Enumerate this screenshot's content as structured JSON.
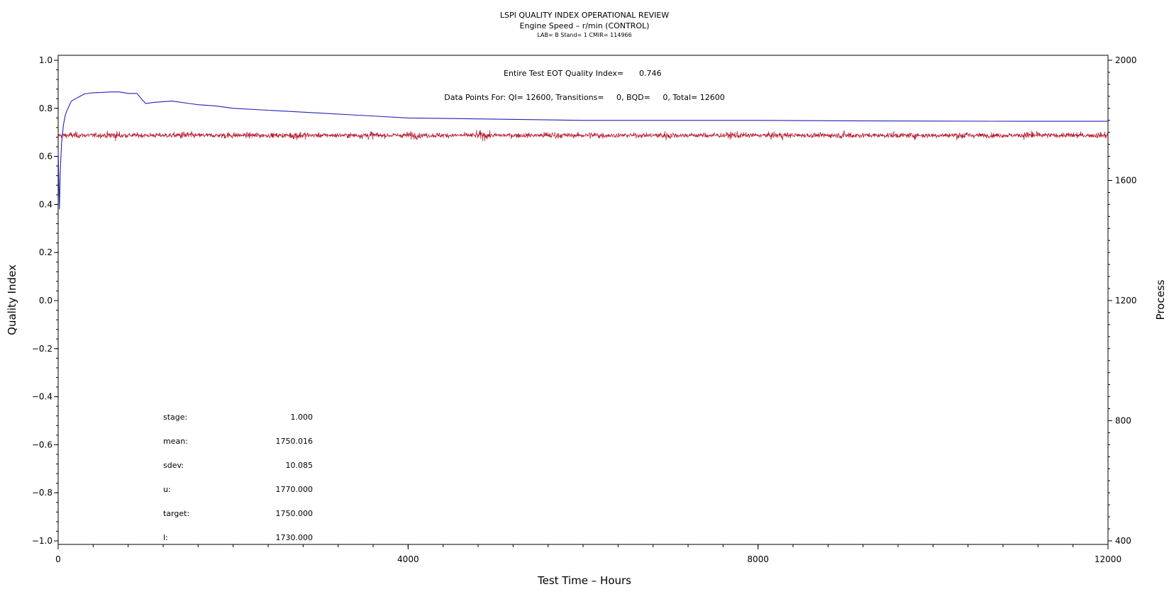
{
  "header": {
    "title": "LSPI QUALITY INDEX OPERATIONAL REVIEW",
    "subtitle": "Engine Speed – r/min (CONTROL)",
    "info": "LAB= B Stand= 1 CMIR= 114966"
  },
  "annotations": {
    "eot_label": "Entire Test EOT Quality Index=",
    "eot_value": "0.746",
    "points": "Data Points For: QI= 12600, Transitions=     0, BQD=     0, Total= 12600"
  },
  "stats": [
    {
      "label": "stage:",
      "value": "1.000"
    },
    {
      "label": "mean:",
      "value": "1750.016"
    },
    {
      "label": "sdev:",
      "value": "10.085"
    },
    {
      "label": "u:",
      "value": "1770.000"
    },
    {
      "label": "target:",
      "value": "1750.000"
    },
    {
      "label": "l:",
      "value": "1730.000"
    }
  ],
  "colors": {
    "quality_index": "#2323b4",
    "process": "#b4162a",
    "axis": "#000000"
  },
  "chart_data": {
    "type": "line",
    "xlabel": "Test Time – Hours",
    "ylabel": "Quality Index",
    "y2label": "Process",
    "xlim": [
      0,
      12000
    ],
    "ylim": [
      -1.0,
      1.0
    ],
    "y2lim": [
      400,
      2000
    ],
    "x_ticks": [
      "0",
      "4000",
      "8000",
      "12000"
    ],
    "y_ticks": [
      "1.0",
      "0.8",
      "0.6",
      "0.4",
      "0.2",
      "0.0",
      "−0.2",
      "−0.4",
      "−0.6",
      "−0.8",
      "−1.0"
    ],
    "y2_ticks": [
      "2000",
      "1600",
      "1200",
      "800",
      "400"
    ],
    "series": [
      {
        "id": "quality_index",
        "axis": "left",
        "x": [
          0,
          15,
          25,
          40,
          60,
          80,
          100,
          150,
          200,
          250,
          300,
          400,
          500,
          600,
          700,
          800,
          900,
          950,
          1000,
          1100,
          1300,
          1500,
          1600,
          1800,
          2000,
          2500,
          3000,
          3500,
          4000,
          5000,
          6000,
          7000,
          8000,
          9000,
          10000,
          11000,
          12000
        ],
        "y": [
          0.62,
          0.38,
          0.55,
          0.66,
          0.73,
          0.77,
          0.79,
          0.83,
          0.84,
          0.85,
          0.86,
          0.865,
          0.866,
          0.868,
          0.868,
          0.862,
          0.862,
          0.84,
          0.82,
          0.825,
          0.83,
          0.82,
          0.815,
          0.81,
          0.8,
          0.79,
          0.78,
          0.77,
          0.76,
          0.755,
          0.75,
          0.75,
          0.75,
          0.748,
          0.747,
          0.746,
          0.746
        ]
      },
      {
        "id": "process",
        "axis": "right",
        "mean": 1750.016,
        "sdev": 10.085,
        "x_range": [
          0,
          12000
        ],
        "n": 12600
      }
    ]
  }
}
